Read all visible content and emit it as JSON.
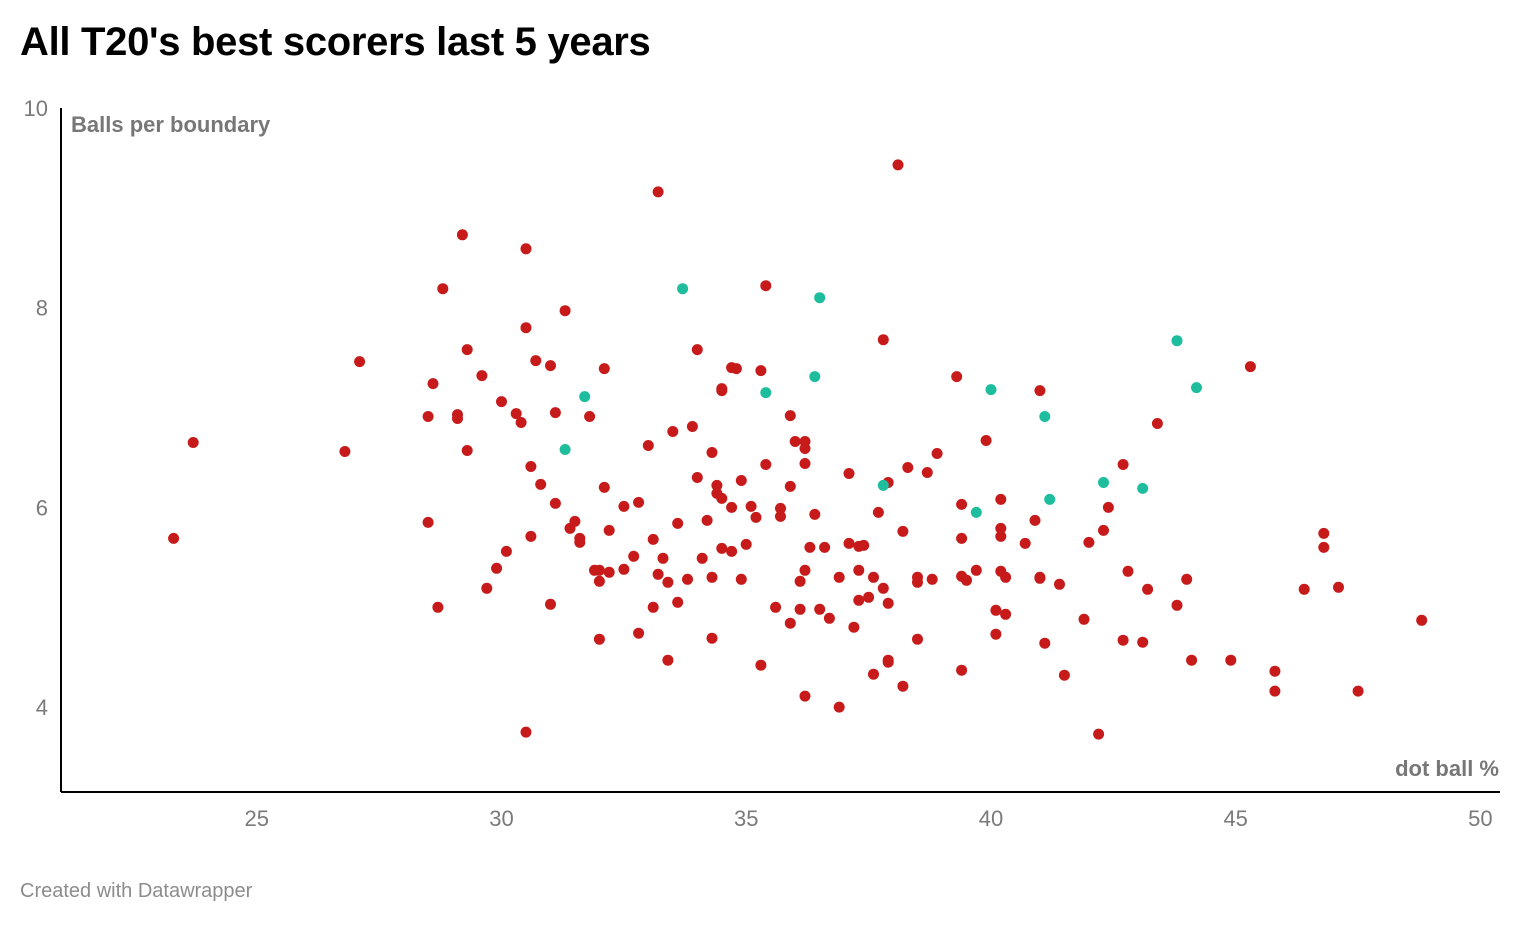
{
  "chart_data": {
    "type": "scatter",
    "title": "All T20's best scorers last 5 years",
    "xlabel": "dot ball %",
    "ylabel": "Balls per boundary",
    "xlim": [
      21,
      50.4
    ],
    "ylim": [
      3.15,
      10
    ],
    "x_ticks": [
      25,
      30,
      35,
      40,
      45,
      50
    ],
    "y_ticks": [
      4,
      6,
      8,
      10
    ],
    "grid": false,
    "legend": "none",
    "series": [
      {
        "color": "#c71b1b",
        "points": [
          [
            23.3,
            5.69
          ],
          [
            23.7,
            6.65
          ],
          [
            26.8,
            6.56
          ],
          [
            27.1,
            7.46
          ],
          [
            28.5,
            6.91
          ],
          [
            28.5,
            5.85
          ],
          [
            28.6,
            7.24
          ],
          [
            28.7,
            5.0
          ],
          [
            28.8,
            8.19
          ],
          [
            29.1,
            6.89
          ],
          [
            29.1,
            6.93
          ],
          [
            29.2,
            8.73
          ],
          [
            29.3,
            7.58
          ],
          [
            29.3,
            6.57
          ],
          [
            29.6,
            7.32
          ],
          [
            29.7,
            5.19
          ],
          [
            29.9,
            5.39
          ],
          [
            30.0,
            7.06
          ],
          [
            30.1,
            5.56
          ],
          [
            30.3,
            6.94
          ],
          [
            30.4,
            6.85
          ],
          [
            30.5,
            3.75
          ],
          [
            30.5,
            8.59
          ],
          [
            30.5,
            7.8
          ],
          [
            30.6,
            6.41
          ],
          [
            30.6,
            5.71
          ],
          [
            30.7,
            7.47
          ],
          [
            30.8,
            6.23
          ],
          [
            31.0,
            7.42
          ],
          [
            31.0,
            5.03
          ],
          [
            31.1,
            6.95
          ],
          [
            31.1,
            6.04
          ],
          [
            31.3,
            7.97
          ],
          [
            31.4,
            5.79
          ],
          [
            31.5,
            5.86
          ],
          [
            31.6,
            5.69
          ],
          [
            31.6,
            5.65
          ],
          [
            31.8,
            6.91
          ],
          [
            31.9,
            5.37
          ],
          [
            32.0,
            5.37
          ],
          [
            32.0,
            5.26
          ],
          [
            32.0,
            4.68
          ],
          [
            32.1,
            7.39
          ],
          [
            32.1,
            6.2
          ],
          [
            32.2,
            5.77
          ],
          [
            32.2,
            5.35
          ],
          [
            32.5,
            5.38
          ],
          [
            32.5,
            6.01
          ],
          [
            32.7,
            5.51
          ],
          [
            32.8,
            6.05
          ],
          [
            32.8,
            4.74
          ],
          [
            33.0,
            6.62
          ],
          [
            33.1,
            5.68
          ],
          [
            33.1,
            5.0
          ],
          [
            33.2,
            9.16
          ],
          [
            33.2,
            5.33
          ],
          [
            33.3,
            5.49
          ],
          [
            33.4,
            4.47
          ],
          [
            33.4,
            5.25
          ],
          [
            33.5,
            6.76
          ],
          [
            33.6,
            5.84
          ],
          [
            33.6,
            5.05
          ],
          [
            33.8,
            5.28
          ],
          [
            33.9,
            6.81
          ],
          [
            34.0,
            7.58
          ],
          [
            34.0,
            6.3
          ],
          [
            34.1,
            5.49
          ],
          [
            34.2,
            5.87
          ],
          [
            34.3,
            6.55
          ],
          [
            34.3,
            5.3
          ],
          [
            34.3,
            4.69
          ],
          [
            34.4,
            6.22
          ],
          [
            34.4,
            6.14
          ],
          [
            34.5,
            7.17
          ],
          [
            34.5,
            7.19
          ],
          [
            34.5,
            6.09
          ],
          [
            34.5,
            5.59
          ],
          [
            34.7,
            6.0
          ],
          [
            34.7,
            5.56
          ],
          [
            34.7,
            7.4
          ],
          [
            34.8,
            7.39
          ],
          [
            34.9,
            6.27
          ],
          [
            34.9,
            5.28
          ],
          [
            35.0,
            5.63
          ],
          [
            35.1,
            6.01
          ],
          [
            35.2,
            5.9
          ],
          [
            35.3,
            4.42
          ],
          [
            35.3,
            7.37
          ],
          [
            35.4,
            8.22
          ],
          [
            35.4,
            6.43
          ],
          [
            35.6,
            5.0
          ],
          [
            35.7,
            5.99
          ],
          [
            35.7,
            5.91
          ],
          [
            35.9,
            4.84
          ],
          [
            35.9,
            6.21
          ],
          [
            35.9,
            6.92
          ],
          [
            36.0,
            6.66
          ],
          [
            36.1,
            4.98
          ],
          [
            36.1,
            5.26
          ],
          [
            36.2,
            6.66
          ],
          [
            36.2,
            6.59
          ],
          [
            36.2,
            5.37
          ],
          [
            36.2,
            6.44
          ],
          [
            36.2,
            4.11
          ],
          [
            36.3,
            5.6
          ],
          [
            36.4,
            5.93
          ],
          [
            36.5,
            4.98
          ],
          [
            36.6,
            5.6
          ],
          [
            36.7,
            4.89
          ],
          [
            36.9,
            5.3
          ],
          [
            36.9,
            4.0
          ],
          [
            37.1,
            6.34
          ],
          [
            37.1,
            5.64
          ],
          [
            37.2,
            4.8
          ],
          [
            37.3,
            5.61
          ],
          [
            37.3,
            5.37
          ],
          [
            37.3,
            5.07
          ],
          [
            37.4,
            5.62
          ],
          [
            37.5,
            5.1
          ],
          [
            37.6,
            4.33
          ],
          [
            37.6,
            5.3
          ],
          [
            37.7,
            5.95
          ],
          [
            37.8,
            5.19
          ],
          [
            37.8,
            7.68
          ],
          [
            37.9,
            4.45
          ],
          [
            37.9,
            4.47
          ],
          [
            37.9,
            5.04
          ],
          [
            37.9,
            6.25
          ],
          [
            38.1,
            9.43
          ],
          [
            38.2,
            5.76
          ],
          [
            38.2,
            4.21
          ],
          [
            38.3,
            6.4
          ],
          [
            38.5,
            5.3
          ],
          [
            38.5,
            5.25
          ],
          [
            38.5,
            4.68
          ],
          [
            38.7,
            6.35
          ],
          [
            38.8,
            5.28
          ],
          [
            38.9,
            6.54
          ],
          [
            39.3,
            7.31
          ],
          [
            39.4,
            5.69
          ],
          [
            39.4,
            5.31
          ],
          [
            39.4,
            6.03
          ],
          [
            39.4,
            4.37
          ],
          [
            39.5,
            5.27
          ],
          [
            39.7,
            5.37
          ],
          [
            39.9,
            6.67
          ],
          [
            40.1,
            4.97
          ],
          [
            40.1,
            4.73
          ],
          [
            40.2,
            6.08
          ],
          [
            40.2,
            5.71
          ],
          [
            40.2,
            5.79
          ],
          [
            40.2,
            5.36
          ],
          [
            40.3,
            4.93
          ],
          [
            40.3,
            5.3
          ],
          [
            40.7,
            5.64
          ],
          [
            40.9,
            5.87
          ],
          [
            41.0,
            5.29
          ],
          [
            41.0,
            5.3
          ],
          [
            41.1,
            4.64
          ],
          [
            41.0,
            7.17
          ],
          [
            41.4,
            5.23
          ],
          [
            41.5,
            4.32
          ],
          [
            41.9,
            4.88
          ],
          [
            42.0,
            5.65
          ],
          [
            42.2,
            3.73
          ],
          [
            42.3,
            5.77
          ],
          [
            42.4,
            6.0
          ],
          [
            42.7,
            6.43
          ],
          [
            42.7,
            4.67
          ],
          [
            42.8,
            5.36
          ],
          [
            43.1,
            4.65
          ],
          [
            43.2,
            5.18
          ],
          [
            43.4,
            6.84
          ],
          [
            43.8,
            5.02
          ],
          [
            44.0,
            5.28
          ],
          [
            44.1,
            4.47
          ],
          [
            44.9,
            4.47
          ],
          [
            45.3,
            7.41
          ],
          [
            45.8,
            4.36
          ],
          [
            45.8,
            4.16
          ],
          [
            46.4,
            5.18
          ],
          [
            46.8,
            5.6
          ],
          [
            46.8,
            5.74
          ],
          [
            47.1,
            5.2
          ],
          [
            47.5,
            4.16
          ],
          [
            48.8,
            4.87
          ]
        ]
      },
      {
        "color": "#1dbd9e",
        "points": [
          [
            31.3,
            6.58
          ],
          [
            31.7,
            7.11
          ],
          [
            33.7,
            8.19
          ],
          [
            35.4,
            7.15
          ],
          [
            36.4,
            7.31
          ],
          [
            36.5,
            8.1
          ],
          [
            37.8,
            6.22
          ],
          [
            39.7,
            5.95
          ],
          [
            40.0,
            7.18
          ],
          [
            41.1,
            6.91
          ],
          [
            41.2,
            6.08
          ],
          [
            42.3,
            6.25
          ],
          [
            43.1,
            6.19
          ],
          [
            43.8,
            7.67
          ],
          [
            44.2,
            7.2
          ]
        ]
      }
    ]
  },
  "footer": {
    "credit": "Created with Datawrapper"
  }
}
